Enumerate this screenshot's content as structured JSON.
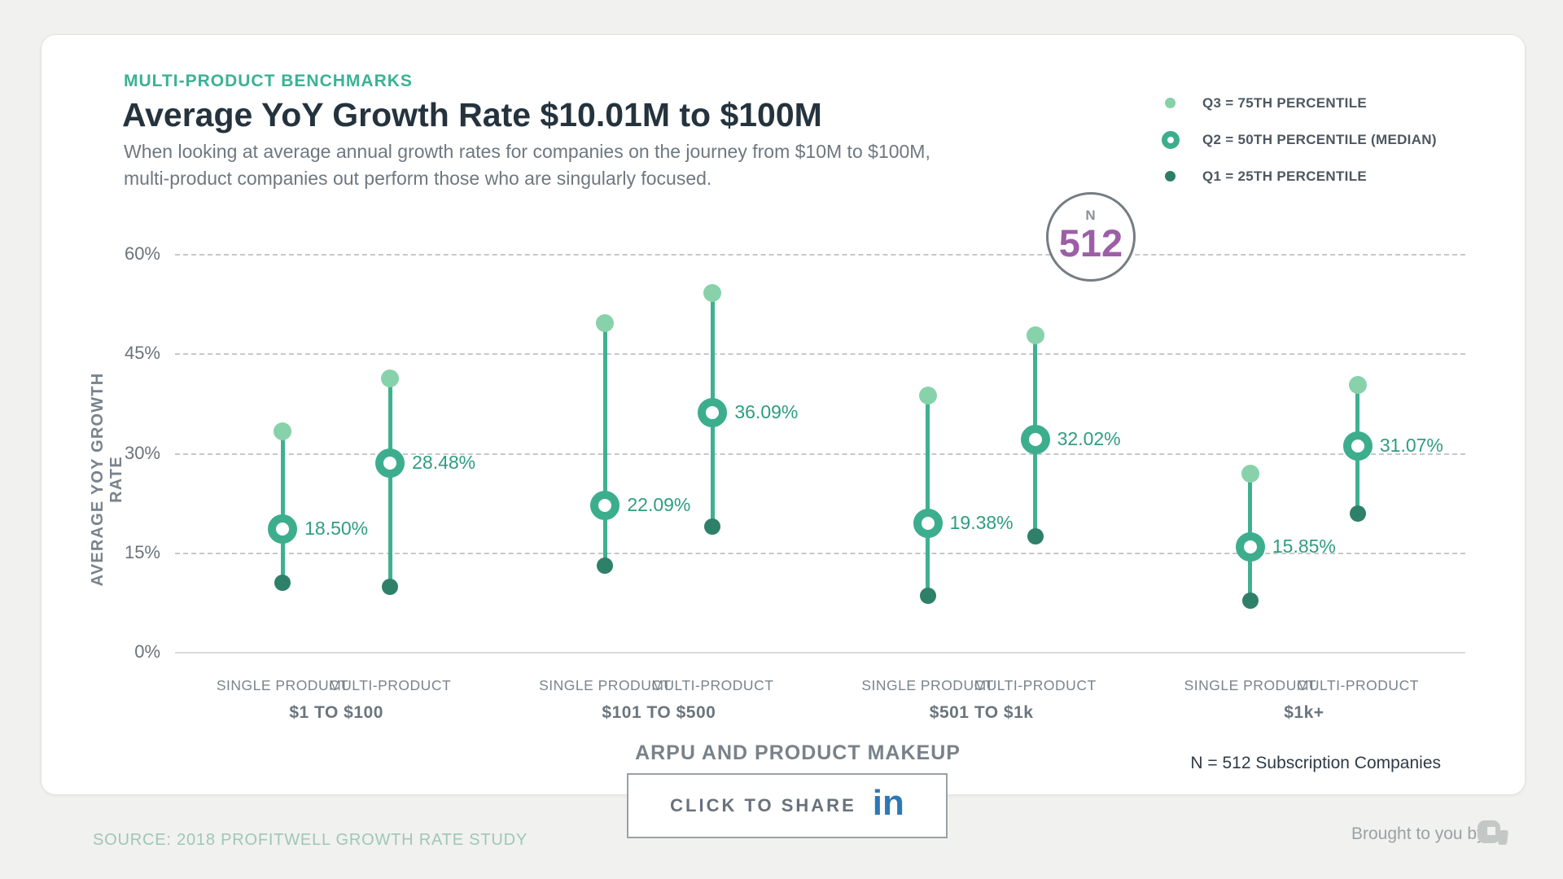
{
  "page": {
    "eyebrow": "MULTI-PRODUCT BENCHMARKS",
    "title": "Average YoY Growth Rate $10.01M to $100M",
    "subtitle_line1": "When looking at average annual growth rates for companies on the journey from $10M to $100M,",
    "subtitle_line2": "multi-product companies out perform those who are singularly focused.",
    "sample_badge": {
      "label": "N",
      "value": "512"
    },
    "footnote": "N = 512 Subscription Companies",
    "share_button": {
      "label": "CLICK TO SHARE",
      "icon": "in"
    },
    "source": "SOURCE: 2018 PROFITWELL GROWTH RATE STUDY",
    "attribution": "Brought to you by"
  },
  "legend": [
    {
      "marker": "q3-dot",
      "label": "Q3 = 75TH PERCENTILE",
      "color": "#85d1a8"
    },
    {
      "marker": "q2-ring",
      "label": "Q2 = 50TH PERCENTILE (MEDIAN)",
      "color": "#3cae8e"
    },
    {
      "marker": "q1-dot",
      "label": "Q1 = 25TH PERCENTILE",
      "color": "#2e7e66"
    }
  ],
  "colors": {
    "accent_teal": "#3bb295",
    "stem": "#3fb091",
    "q3_dot": "#87d2aa",
    "q2_ring": "#3cae8e",
    "q1_dot": "#2f8069",
    "value_label": "#2f9c82",
    "sample_purple": "#9c5fa6",
    "linkedin_blue": "#2f78b6",
    "title_text": "#24333e"
  },
  "chart_data": {
    "type": "lollipop quartile-range dot plot",
    "title": "Average YoY Growth Rate $10.01M to $100M",
    "xlabel": "ARPU AND PRODUCT MAKEUP",
    "ylabel": "AVERAGE YOY GROWTH RATE",
    "ylim": [
      0,
      60
    ],
    "grid": "dashed horizontal",
    "legend_position": "top-right",
    "yticks": [
      {
        "value": 60,
        "label": "60%"
      },
      {
        "value": 45,
        "label": "45%"
      },
      {
        "value": 30,
        "label": "30%"
      },
      {
        "value": 15,
        "label": "15%"
      },
      {
        "value": 0,
        "label": "0%"
      }
    ],
    "groups": [
      {
        "label": "$1 TO $100",
        "points": [
          {
            "label": "SINGLE PRODUCT",
            "q1": 10.4,
            "q2": 18.5,
            "q3": 33.2,
            "q2_label": "18.50%"
          },
          {
            "label": "MULTI-PRODUCT",
            "q1": 9.8,
            "q2": 28.48,
            "q3": 41.2,
            "q2_label": "28.48%"
          }
        ]
      },
      {
        "label": "$101 TO $500",
        "points": [
          {
            "label": "SINGLE PRODUCT",
            "q1": 13.0,
            "q2": 22.09,
            "q3": 49.6,
            "q2_label": "22.09%"
          },
          {
            "label": "MULTI-PRODUCT",
            "q1": 18.9,
            "q2": 36.09,
            "q3": 54.1,
            "q2_label": "36.09%"
          }
        ]
      },
      {
        "label": "$501 TO $1k",
        "points": [
          {
            "label": "SINGLE PRODUCT",
            "q1": 8.5,
            "q2": 19.38,
            "q3": 38.6,
            "q2_label": "19.38%"
          },
          {
            "label": "MULTI-PRODUCT",
            "q1": 17.4,
            "q2": 32.02,
            "q3": 47.7,
            "q2_label": "32.02%"
          }
        ]
      },
      {
        "label": "$1k+",
        "points": [
          {
            "label": "SINGLE PRODUCT",
            "q1": 7.7,
            "q2": 15.85,
            "q3": 26.9,
            "q2_label": "15.85%"
          },
          {
            "label": "MULTI-PRODUCT",
            "q1": 20.9,
            "q2": 31.07,
            "q3": 40.2,
            "q2_label": "31.07%"
          }
        ]
      }
    ]
  }
}
